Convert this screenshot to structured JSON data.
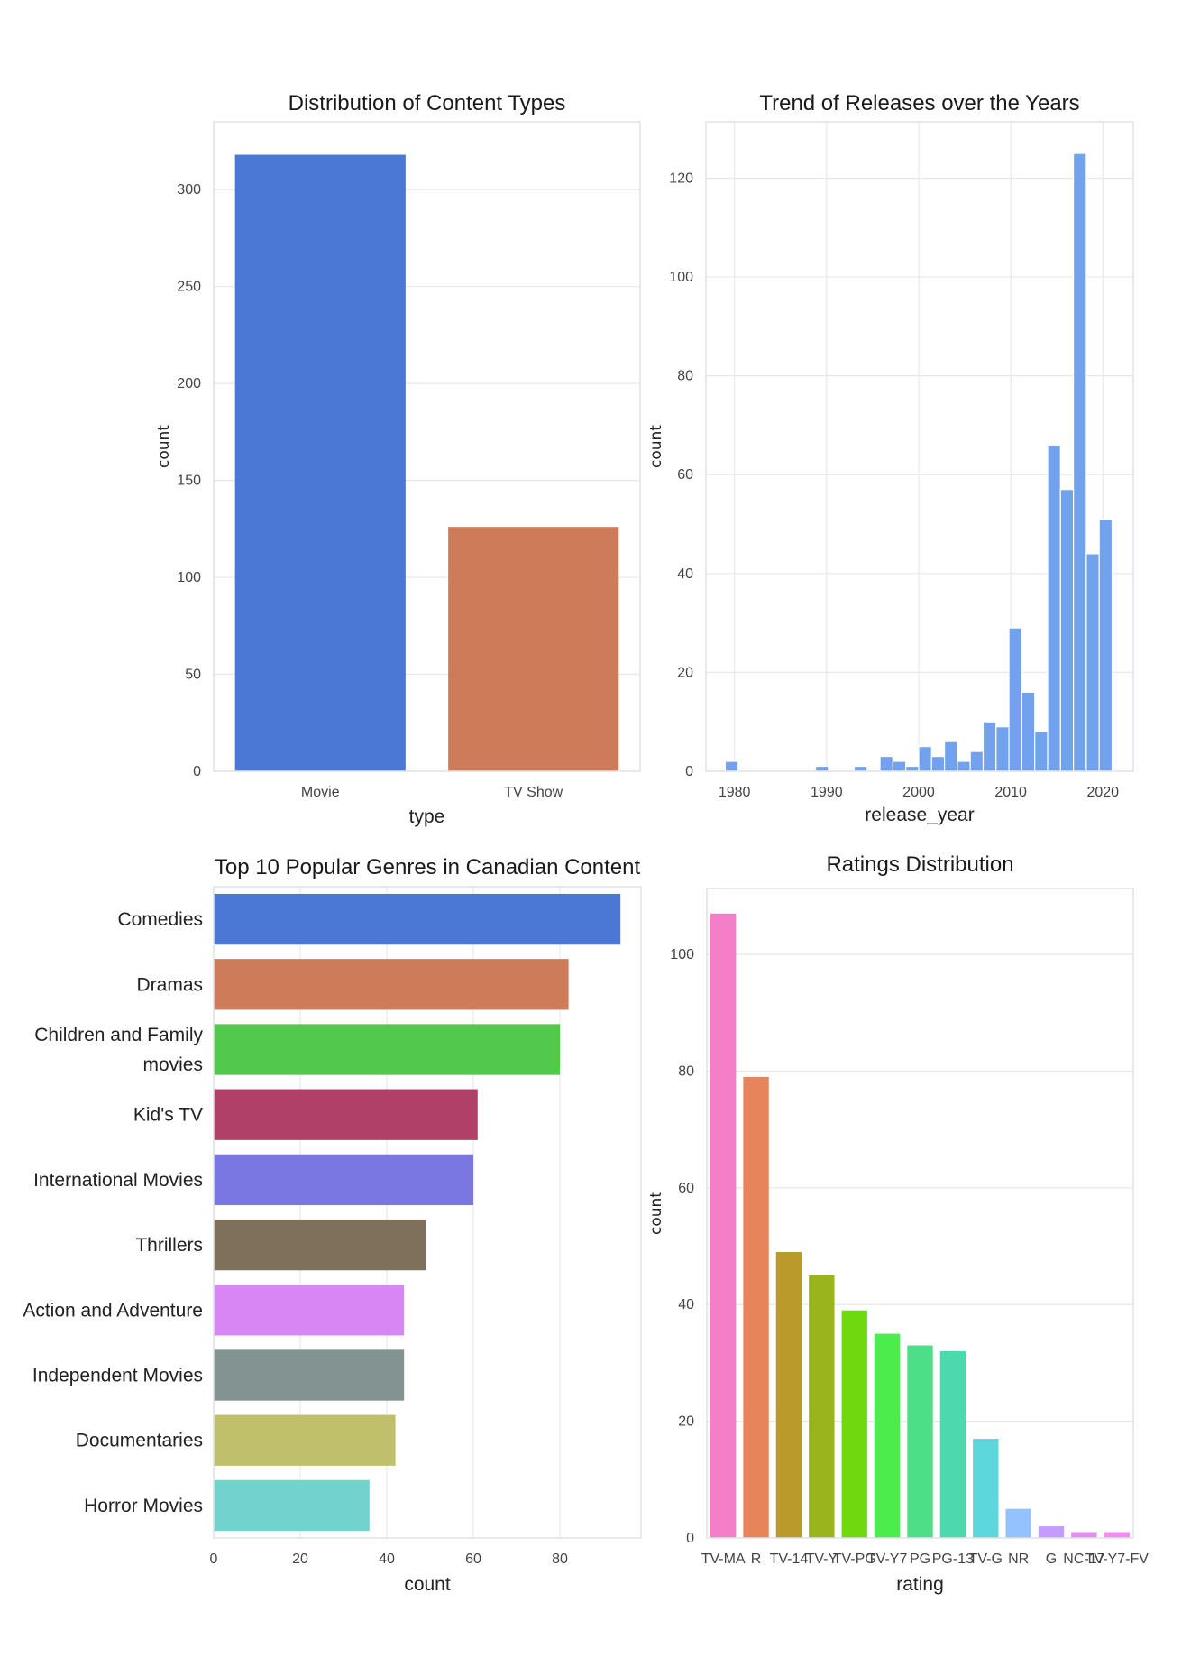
{
  "chart_data": [
    {
      "id": "types",
      "type": "bar",
      "title": "Distribution of Content Types",
      "xlabel": "type",
      "ylabel": "count",
      "categories": [
        "Movie",
        "TV Show"
      ],
      "values": [
        318,
        126
      ],
      "colors": [
        "#4a78d4",
        "#cd7b58"
      ],
      "ylim": [
        0,
        335
      ],
      "yticks": [
        0,
        50,
        100,
        150,
        200,
        250,
        300
      ],
      "grid": true
    },
    {
      "id": "years",
      "type": "bar",
      "subtype": "histogram",
      "title": "Trend of Releases over the Years",
      "xlabel": "release_year",
      "ylabel": "count",
      "bin_width": 1.4,
      "bins": [
        {
          "start": 1979.0,
          "count": 2
        },
        {
          "start": 1988.8,
          "count": 1
        },
        {
          "start": 1993.0,
          "count": 1
        },
        {
          "start": 1995.8,
          "count": 3
        },
        {
          "start": 1997.2,
          "count": 2
        },
        {
          "start": 1998.6,
          "count": 1
        },
        {
          "start": 2000.0,
          "count": 5
        },
        {
          "start": 2001.4,
          "count": 3
        },
        {
          "start": 2002.8,
          "count": 6
        },
        {
          "start": 2004.2,
          "count": 2
        },
        {
          "start": 2005.6,
          "count": 4
        },
        {
          "start": 2007.0,
          "count": 10
        },
        {
          "start": 2008.4,
          "count": 9
        },
        {
          "start": 2009.8,
          "count": 29
        },
        {
          "start": 2011.2,
          "count": 16
        },
        {
          "start": 2012.6,
          "count": 8
        },
        {
          "start": 2014.0,
          "count": 66
        },
        {
          "start": 2015.4,
          "count": 57
        },
        {
          "start": 2016.8,
          "count": 125
        },
        {
          "start": 2018.2,
          "count": 44
        },
        {
          "start": 2019.6,
          "count": 51
        }
      ],
      "color": "#6a9ded",
      "xlim": [
        1976.9,
        2023.3
      ],
      "ylim": [
        0,
        131.4
      ],
      "xticks": [
        1980,
        1990,
        2000,
        2010,
        2020
      ],
      "yticks": [
        0,
        20,
        40,
        60,
        80,
        100,
        120
      ],
      "grid": true
    },
    {
      "id": "genres",
      "type": "bar",
      "orientation": "horizontal",
      "title": "Top 10 Popular Genres in Canadian Content",
      "xlabel": "count",
      "ylabel": "",
      "categories": [
        "Comedies",
        "Dramas",
        "Children and Family movies",
        "Kid's TV",
        "International Movies",
        "Thrillers",
        "Action and Adventure",
        "Independent Movies",
        "Documentaries",
        "Horror Movies"
      ],
      "category_lines": [
        [
          "Comedies"
        ],
        [
          "Dramas"
        ],
        [
          "Children and Family",
          "movies"
        ],
        [
          "Kid's TV"
        ],
        [
          "International Movies"
        ],
        [
          "Thrillers"
        ],
        [
          "Action and Adventure"
        ],
        [
          "Independent Movies"
        ],
        [
          "Documentaries"
        ],
        [
          "Horror Movies"
        ]
      ],
      "values": [
        94,
        82,
        80,
        61,
        60,
        49,
        44,
        44,
        42,
        36
      ],
      "colors": [
        "#4a78d4",
        "#cd7b58",
        "#52c94d",
        "#b04068",
        "#7a76e2",
        "#7f705a",
        "#d787f4",
        "#839391",
        "#bfbf6c",
        "#72d2cc"
      ],
      "xlim": [
        0,
        98.75
      ],
      "xticks": [
        0,
        20,
        40,
        60,
        80
      ],
      "grid": true
    },
    {
      "id": "ratings",
      "type": "bar",
      "title": "Ratings Distribution",
      "xlabel": "rating",
      "ylabel": "count",
      "categories": [
        "TV-MA",
        "R",
        "TV-14",
        "TV-Y",
        "TV-PG",
        "TV-Y7",
        "PG",
        "PG-13",
        "TV-G",
        "NR",
        "G",
        "NC-17",
        "TV-Y7-FV"
      ],
      "values": [
        107,
        79,
        49,
        45,
        39,
        35,
        33,
        32,
        17,
        5,
        2,
        1,
        1
      ],
      "colors": [
        "#f47fc8",
        "#e8845a",
        "#bb9a2c",
        "#9ab51b",
        "#6fd80f",
        "#4cec4c",
        "#4ddf88",
        "#4cd9ad",
        "#5cd8dd",
        "#93c2ff",
        "#c49bff",
        "#e28ff0",
        "#f28df0"
      ],
      "ylim": [
        0,
        111.3
      ],
      "yticks": [
        0,
        20,
        40,
        60,
        80,
        100
      ],
      "grid": true
    }
  ]
}
